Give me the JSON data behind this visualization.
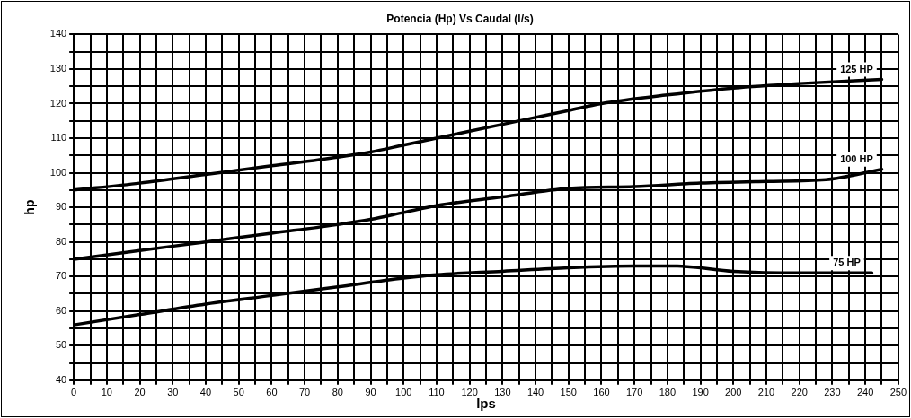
{
  "chart_data": {
    "type": "line",
    "title": "Potencia (Hp) Vs Caudal (l/s)",
    "xlabel": "lps",
    "ylabel": "hp",
    "xlim": [
      0,
      250
    ],
    "xticks": [
      0,
      {
        "value": 5,
        "label": null
      },
      10,
      {
        "value": 15,
        "label": null
      },
      20,
      {
        "value": 25,
        "label": null
      },
      30,
      {
        "value": 35,
        "label": null
      },
      40,
      {
        "value": 45,
        "label": null
      },
      50,
      {
        "value": 55,
        "label": null
      },
      60,
      {
        "value": 65,
        "label": null
      },
      70,
      {
        "value": 75,
        "label": null
      },
      80,
      {
        "value": 85,
        "label": null
      },
      90,
      {
        "value": 95,
        "label": null
      },
      100,
      {
        "value": 105,
        "label": null
      },
      110,
      {
        "value": 115,
        "label": null
      },
      120,
      {
        "value": 125,
        "label": null
      },
      130,
      {
        "value": 135,
        "label": null
      },
      140,
      {
        "value": 145,
        "label": null
      },
      150,
      {
        "value": 155,
        "label": null
      },
      160,
      {
        "value": 165,
        "label": null
      },
      170,
      {
        "value": 175,
        "label": null
      },
      180,
      {
        "value": 185,
        "label": null
      },
      190,
      {
        "value": 195,
        "label": null
      },
      200,
      {
        "value": 205,
        "label": null
      },
      210,
      {
        "value": 215,
        "label": null
      },
      220,
      {
        "value": 225,
        "label": null
      },
      230,
      {
        "value": 235,
        "label": null
      },
      240,
      {
        "value": 245,
        "label": null
      },
      250
    ],
    "ylim": [
      40,
      140
    ],
    "yticks": [
      40,
      {
        "value": 45,
        "label": null
      },
      50,
      {
        "value": 55,
        "label": null
      },
      60,
      {
        "value": 65,
        "label": null
      },
      70,
      {
        "value": 75,
        "label": null
      },
      80,
      {
        "value": 85,
        "label": null
      },
      90,
      {
        "value": 95,
        "label": null
      },
      100,
      {
        "value": 105,
        "label": null
      },
      110,
      {
        "value": 115,
        "label": null
      },
      120,
      {
        "value": 125,
        "label": null
      },
      130,
      {
        "value": 135,
        "label": null
      },
      140
    ],
    "grid": true,
    "legend": false,
    "marker": "none",
    "line_style": "solid",
    "series": [
      {
        "name": "125 HP",
        "color": "#000000",
        "x": [
          0,
          20,
          40,
          60,
          80,
          90,
          100,
          110,
          120,
          140,
          150,
          160,
          180,
          200,
          220,
          245
        ],
        "values": [
          95,
          97,
          99.5,
          102,
          104.5,
          106,
          108,
          110,
          112,
          116,
          118,
          120,
          122.5,
          124.5,
          125.8,
          127
        ]
      },
      {
        "name": "100 HP",
        "color": "#000000",
        "x": [
          0,
          20,
          40,
          60,
          80,
          90,
          100,
          110,
          130,
          150,
          170,
          190,
          210,
          228,
          245
        ],
        "values": [
          75,
          77.5,
          80,
          82.5,
          85,
          86.5,
          88.5,
          90.5,
          93,
          95.5,
          96,
          97,
          97.5,
          98,
          101
        ]
      },
      {
        "name": "75 HP",
        "color": "#000000",
        "x": [
          0,
          20,
          40,
          60,
          80,
          100,
          110,
          130,
          150,
          170,
          183,
          200,
          220,
          242
        ],
        "values": [
          56,
          59,
          62,
          64.5,
          67,
          69.5,
          70.5,
          71.5,
          72.5,
          73,
          73,
          71.5,
          71,
          71
        ]
      }
    ]
  }
}
